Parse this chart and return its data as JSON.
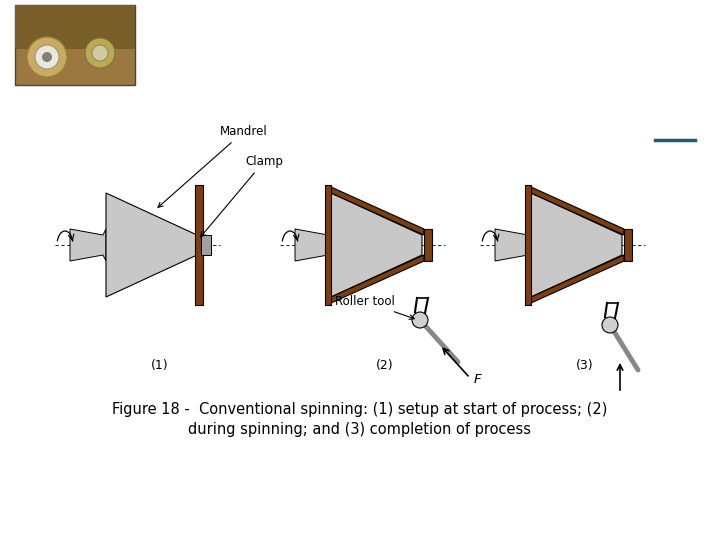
{
  "bg_color": "#ffffff",
  "caption_line1": "Figure 18 ‑  Conventional spinning: (1) setup at start of process; (2)",
  "caption_line2": "during spinning; and (3) completion of process",
  "caption_fontsize": 10.5,
  "label1": "(1)",
  "label2": "(2)",
  "label3": "(3)",
  "mandrel_label": "Mandrel",
  "clamp_label": "Clamp",
  "roller_label": "Roller tool",
  "force_label": "F",
  "gray_light": "#c8c8c8",
  "gray_mid": "#a0a0a0",
  "brown_color": "#7B3F10",
  "blue_line_color": "#1a5f7a",
  "photo_bg": "#b08030",
  "s1x": 165,
  "s2x": 390,
  "s3x": 590,
  "sy": 295
}
